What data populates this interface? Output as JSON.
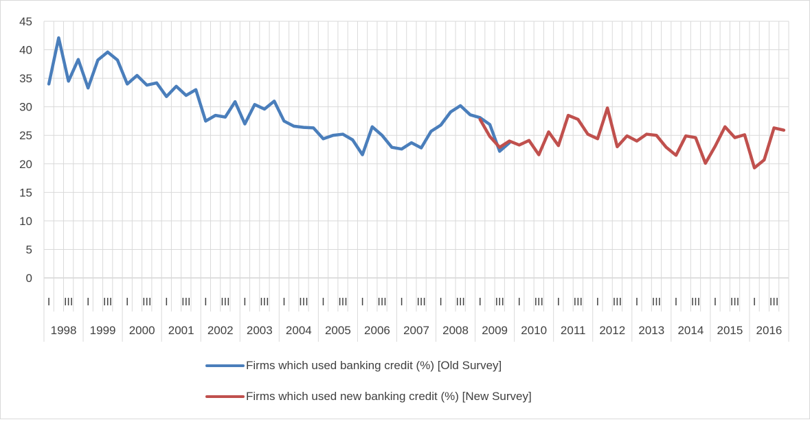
{
  "chart_data": {
    "type": "line",
    "title": "",
    "xlabel": "",
    "ylabel": "",
    "ylim": [
      0,
      45
    ],
    "yticks": [
      0,
      5,
      10,
      15,
      20,
      25,
      30,
      35,
      40,
      45
    ],
    "grid": true,
    "legend_position": "bottom",
    "years": [
      "1998",
      "1999",
      "2000",
      "2001",
      "2002",
      "2003",
      "2004",
      "2005",
      "2006",
      "2007",
      "2008",
      "2009",
      "2010",
      "2011",
      "2012",
      "2013",
      "2014",
      "2015",
      "2016"
    ],
    "quarter_tick_labels": [
      "I",
      "III"
    ],
    "series": [
      {
        "name": "Firms which used banking credit (%) [Old Survey]",
        "color": "#4a7ebb",
        "start_index": 0,
        "values": [
          34.0,
          42.1,
          34.5,
          38.3,
          33.3,
          38.2,
          39.6,
          38.2,
          34.0,
          35.5,
          33.8,
          34.2,
          31.8,
          33.6,
          32.0,
          33.0,
          27.5,
          28.5,
          28.2,
          30.9,
          27.0,
          30.4,
          29.6,
          31.0,
          27.5,
          26.6,
          26.4,
          26.3,
          24.4,
          25.0,
          25.2,
          24.2,
          21.6,
          26.5,
          25.0,
          22.9,
          22.6,
          23.7,
          22.8,
          25.7,
          26.8,
          29.1,
          30.2,
          28.6,
          28.1,
          26.9,
          22.2,
          23.7
        ]
      },
      {
        "name": "Firms which used new banking credit (%) [New Survey]",
        "color": "#c0504d",
        "start_index": 44,
        "values": [
          27.8,
          24.8,
          22.9,
          24.0,
          23.3,
          24.1,
          21.6,
          25.6,
          23.2,
          28.5,
          27.8,
          25.2,
          24.4,
          29.8,
          23.0,
          24.9,
          24.0,
          25.2,
          25.0,
          22.9,
          21.5,
          24.9,
          24.6,
          20.1,
          23.1,
          26.5,
          24.6,
          25.1,
          19.3,
          20.7,
          26.3,
          25.9
        ]
      }
    ]
  },
  "legend": {
    "items": [
      {
        "label": "Firms which used banking credit (%) [Old Survey]",
        "color": "#4a7ebb"
      },
      {
        "label": "Firms which used new banking credit (%) [New Survey]",
        "color": "#c0504d"
      }
    ]
  }
}
